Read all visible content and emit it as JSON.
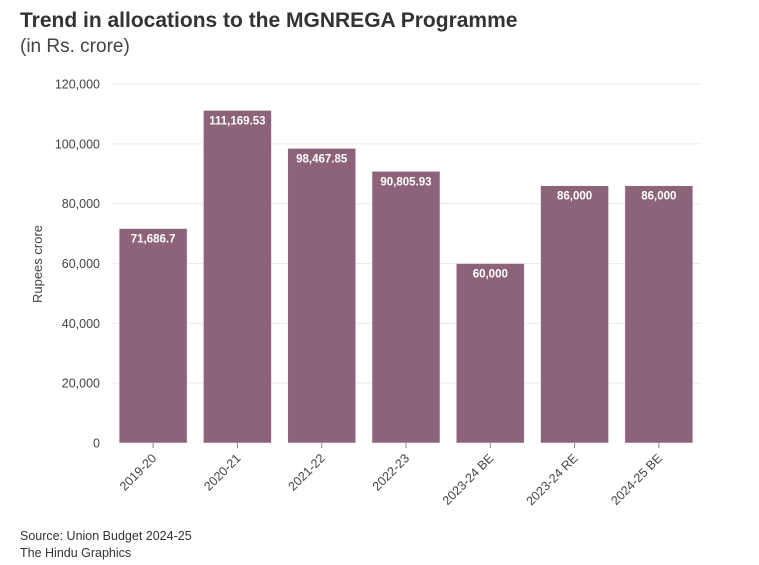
{
  "header": {
    "title": "Trend in allocations to the MGNREGA Programme",
    "subtitle": "(in Rs. crore)"
  },
  "footer": {
    "source": "Source: Union Budget 2024-25",
    "credit": "The Hindu Graphics"
  },
  "colors": {
    "bar": "#8c6379",
    "bar_edge": "#f4eef1",
    "grid": "#ececec",
    "axis_text": "#444444",
    "label_text": "#ffffff"
  },
  "chart_data": {
    "type": "bar",
    "title": "Trend in allocations to the MGNREGA Programme",
    "subtitle": "(in Rs. crore)",
    "xlabel": "",
    "ylabel": "Rupees crore",
    "ylim": [
      0,
      120000
    ],
    "yticks": [
      0,
      20000,
      40000,
      60000,
      80000,
      100000,
      120000
    ],
    "ytick_labels": [
      "0",
      "20,000",
      "40,000",
      "60,000",
      "80,000",
      "100,000",
      "120,000"
    ],
    "grid": true,
    "categories": [
      "2019-20",
      "2020-21",
      "2021-22",
      "2022-23",
      "2023-24 BE",
      "2023-24 RE",
      "2024-25 BE"
    ],
    "values": [
      71686.7,
      111169.53,
      98467.85,
      90805.93,
      60000,
      86000,
      86000
    ],
    "value_labels": [
      "71,686.7",
      "111,169.53",
      "98,467.85",
      "90,805.93",
      "60,000",
      "86,000",
      "86,000"
    ]
  }
}
